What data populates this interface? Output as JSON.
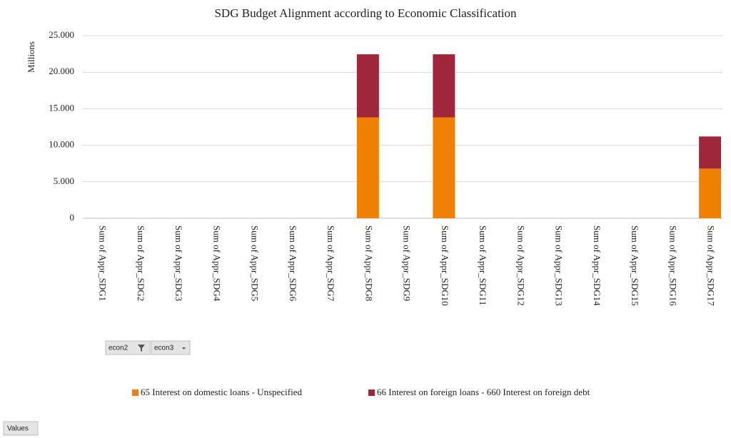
{
  "chart_data": {
    "type": "stacked_bar",
    "title": "SDG Budget Alignment according to Economic Classification",
    "y_label": "Millions",
    "categories": [
      "Sum of Appr_SDG1",
      "Sum of Appr_SDG2",
      "Sum of Appr_SDG3",
      "Sum of Appr_SDG4",
      "Sum of Appr_SDG5",
      "Sum of Appr_SDG6",
      "Sum of Appr_SDG7",
      "Sum of Appr_SDG8",
      "Sum of Appr_SDG9",
      "Sum of Appr_SDG10",
      "Sum of Appr_SDG11",
      "Sum of Appr_SDG12",
      "Sum of Appr_SDG13",
      "Sum of Appr_SDG14",
      "Sum of Appr_SDG15",
      "Sum of Appr_SDG16",
      "Sum of Appr_SDG17"
    ],
    "series": [
      {
        "name": "65 Interest on domestic loans - Unspecified",
        "color": "#f08000",
        "values": [
          0,
          0,
          0,
          0,
          0,
          0,
          0,
          13800,
          0,
          13800,
          0,
          0,
          0,
          0,
          0,
          0,
          6800
        ]
      },
      {
        "name": "66 Interest on foreign loans - 660 Interest on foreign debt",
        "color": "#a0273a",
        "values": [
          0,
          0,
          0,
          0,
          0,
          0,
          0,
          8650,
          0,
          8650,
          0,
          0,
          0,
          0,
          0,
          0,
          4400
        ]
      }
    ],
    "ylim": [
      0,
      25000
    ],
    "yticks": [
      0,
      {
        "value": 5000,
        "label": "5.000"
      },
      {
        "value": 10000,
        "label": "10.000"
      },
      {
        "value": 15000,
        "label": "15.000"
      },
      {
        "value": 20000,
        "label": "20.000"
      },
      {
        "value": 25000,
        "label": "25.000"
      }
    ],
    "grid": true,
    "legend": "bottom"
  },
  "field_buttons": [
    "econ2",
    "econ3"
  ],
  "values_button": "Values"
}
